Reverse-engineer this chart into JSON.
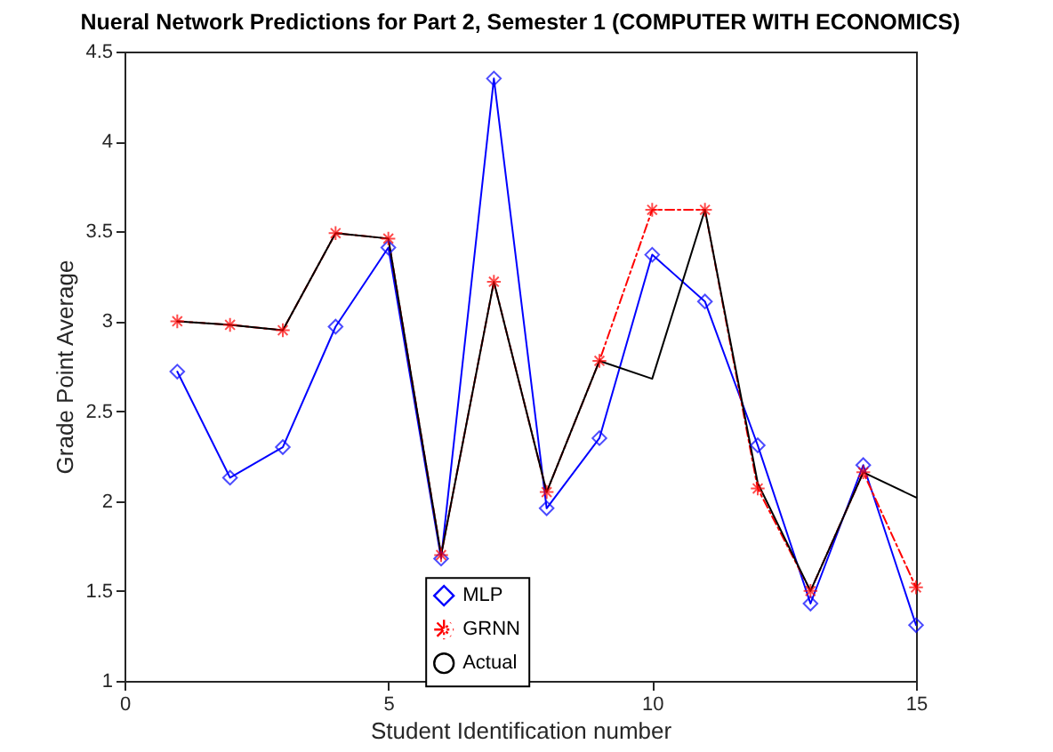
{
  "chart_data": {
    "type": "line",
    "title": "Nueral Network Predictions for Part 2, Semester 1 (COMPUTER WITH ECONOMICS)",
    "xlabel": "Student Identification number",
    "ylabel": "Grade Point Average",
    "x": [
      1,
      2,
      3,
      4,
      5,
      6,
      7,
      8,
      9,
      10,
      11,
      12,
      13,
      14,
      15
    ],
    "series": [
      {
        "name": "MLP",
        "color": "#0000ff",
        "marker": "diamond",
        "line_style": "solid",
        "values": [
          2.72,
          2.13,
          2.3,
          2.97,
          3.41,
          1.68,
          4.35,
          1.96,
          2.35,
          3.37,
          3.11,
          2.31,
          1.43,
          2.2,
          1.31
        ]
      },
      {
        "name": "GRNN",
        "color": "#ff0000",
        "marker": "cross",
        "line_style": "dashed",
        "values": [
          3.0,
          2.98,
          2.95,
          3.49,
          3.46,
          1.7,
          3.22,
          2.05,
          2.78,
          3.62,
          3.62,
          2.07,
          1.5,
          2.16,
          1.52
        ]
      },
      {
        "name": "Actual",
        "color": "#000000",
        "marker": "none",
        "line_style": "solid",
        "values": [
          3.0,
          2.98,
          2.95,
          3.49,
          3.46,
          1.7,
          3.22,
          2.05,
          2.78,
          2.68,
          3.62,
          2.1,
          1.5,
          2.16,
          2.02
        ]
      }
    ],
    "xlim": [
      0,
      15
    ],
    "xticks": [
      0,
      5,
      10,
      15
    ],
    "ylim": [
      1,
      4.5
    ],
    "yticks": [
      1,
      1.5,
      2,
      2.5,
      3,
      3.5,
      4,
      4.5
    ],
    "grid": false,
    "legend": "bottom"
  }
}
